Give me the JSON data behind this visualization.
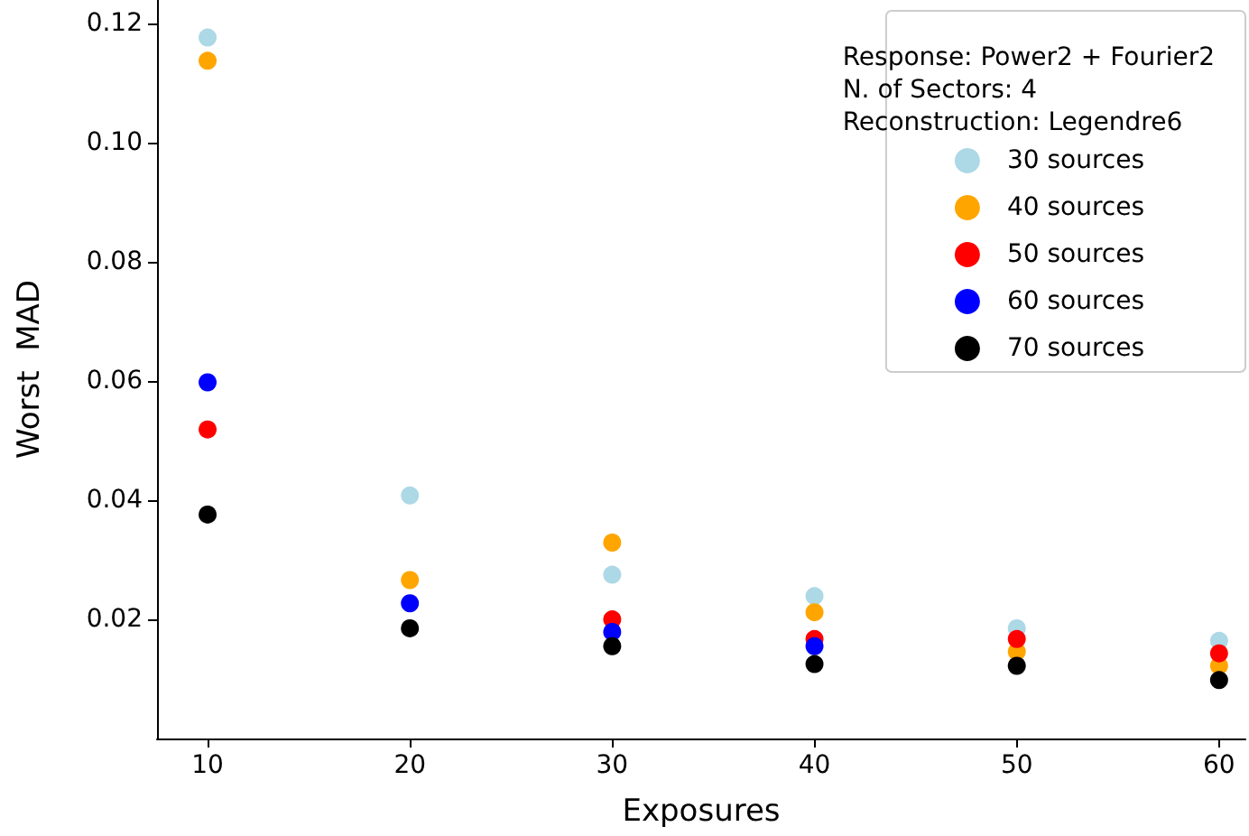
{
  "chart_data": {
    "type": "scatter",
    "xlabel": "Exposures",
    "ylabel": "Worst  MAD",
    "legend_title": "Response: Power2 + Fourier2\nN. of Sectors: 4\nReconstruction: Legendre6",
    "x": [
      10,
      20,
      30,
      40,
      50,
      60
    ],
    "series": [
      {
        "name": "30 sources",
        "color": "#add8e6",
        "values": [
          0.1177,
          0.0408,
          0.0275,
          0.0239,
          0.0185,
          0.0164
        ]
      },
      {
        "name": "40 sources",
        "color": "#ffa500",
        "values": [
          0.1138,
          0.0266,
          0.0329,
          0.0212,
          0.0146,
          0.0122
        ]
      },
      {
        "name": "50 sources",
        "color": "#ff0000",
        "values": [
          0.0519,
          null,
          0.02,
          0.0167,
          0.0167,
          0.0143
        ]
      },
      {
        "name": "60 sources",
        "color": "#0000ff",
        "values": [
          0.0598,
          0.0227,
          0.0179,
          0.0155,
          null,
          null
        ]
      },
      {
        "name": "70 sources",
        "color": "#000000",
        "values": [
          0.0376,
          0.0185,
          0.0155,
          0.0125,
          0.0122,
          0.0098
        ]
      }
    ],
    "xlim": [
      7.5,
      61.3
    ],
    "xticks": [
      10,
      20,
      30,
      40,
      50,
      60
    ],
    "ylim": [
      0.0,
      0.124
    ],
    "yticks": [
      {
        "value": 0.02,
        "label": "0.02"
      },
      {
        "value": 0.04,
        "label": "0.04"
      },
      {
        "value": 0.06,
        "label": "0.06"
      },
      {
        "value": 0.08,
        "label": "0.08"
      },
      {
        "value": 0.1,
        "label": "0.10"
      },
      {
        "value": 0.12,
        "label": "0.12"
      }
    ],
    "grid": false,
    "legend": "top right",
    "marker": "circle"
  }
}
